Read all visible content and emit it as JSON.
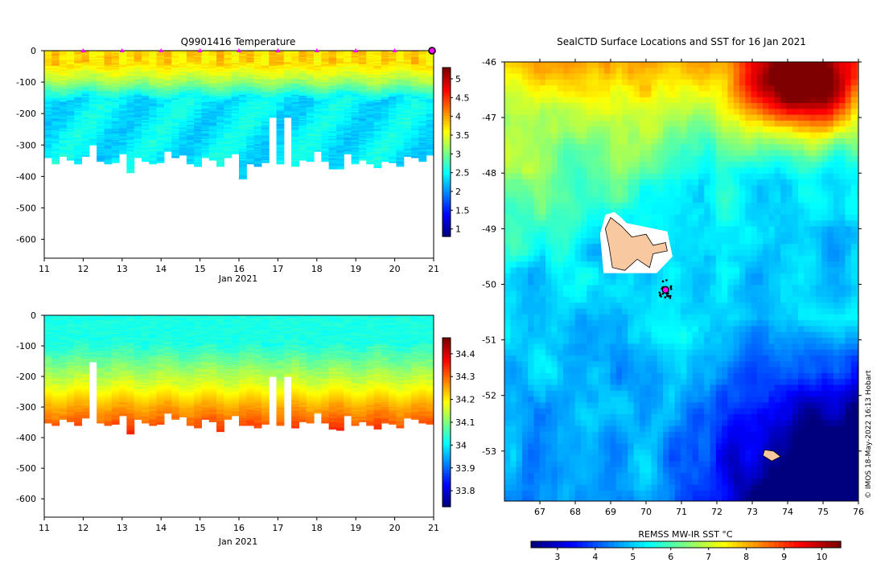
{
  "colors": {
    "jet": [
      "#00007f",
      "#0000ff",
      "#007fff",
      "#00ffff",
      "#7fff7f",
      "#ffff00",
      "#ff7f00",
      "#ff0000",
      "#7f0000"
    ],
    "land": "#f8c8a0",
    "marker": "#ff00ff"
  },
  "chart_data": [
    {
      "type": "heatmap",
      "title": "Q9901416  Temperature",
      "xlabel": "Jan 2021",
      "ylabel": "",
      "x_ticks": [
        "11",
        "12",
        "13",
        "14",
        "15",
        "16",
        "17",
        "18",
        "19",
        "20",
        "21"
      ],
      "xlim": [
        11,
        21
      ],
      "y_ticks": [
        "0",
        "-100",
        "-200",
        "-300",
        "-400",
        "-500",
        "-600"
      ],
      "ylim": [
        -660,
        0
      ],
      "surface_markers": [
        12,
        13,
        14,
        15,
        16,
        17,
        18,
        19,
        20
      ],
      "current_marker": 21,
      "colorbar": {
        "ticks": [
          "1",
          "1.5",
          "2",
          "2.5",
          "3",
          "3.5",
          "4",
          "4.5",
          "5"
        ],
        "range": [
          0.8,
          5.3
        ]
      },
      "profile_depths": [
        340,
        360,
        335,
        345,
        360,
        335,
        300,
        350,
        360,
        355,
        325,
        385,
        340,
        350,
        360,
        355,
        320,
        340,
        330,
        360,
        365,
        340,
        345,
        365,
        340,
        325,
        405,
        360,
        365,
        355,
        210,
        360,
        210,
        365,
        345,
        350,
        320,
        350,
        375,
        375,
        325,
        360,
        345,
        360,
        370,
        350,
        355,
        365,
        335,
        340,
        350,
        330
      ]
    },
    {
      "type": "heatmap",
      "title": "",
      "xlabel": "Jan 2021",
      "ylabel": "",
      "x_ticks": [
        "11",
        "12",
        "13",
        "14",
        "15",
        "16",
        "17",
        "18",
        "19",
        "20",
        "21"
      ],
      "xlim": [
        11,
        21
      ],
      "y_ticks": [
        "0",
        "-100",
        "-200",
        "-300",
        "-400",
        "-500",
        "-600"
      ],
      "ylim": [
        -660,
        0
      ],
      "colorbar": {
        "ticks": [
          "33.8",
          "33.9",
          "34",
          "34.1",
          "34.2",
          "34.3",
          "34.4"
        ],
        "range": [
          33.73,
          34.47
        ]
      },
      "profile_depths": [
        350,
        360,
        340,
        345,
        360,
        335,
        150,
        350,
        360,
        355,
        325,
        385,
        340,
        350,
        360,
        355,
        320,
        340,
        330,
        360,
        365,
        340,
        345,
        380,
        340,
        325,
        360,
        360,
        365,
        355,
        200,
        360,
        200,
        365,
        345,
        350,
        320,
        350,
        370,
        375,
        325,
        360,
        345,
        360,
        370,
        350,
        355,
        365,
        335,
        340,
        350,
        355
      ]
    },
    {
      "type": "heatmap",
      "title": "SealCTD Surface Locations and SST for 16 Jan 2021",
      "xlabel": "",
      "ylabel": "",
      "x_ticks": [
        "67",
        "68",
        "69",
        "70",
        "71",
        "72",
        "73",
        "74",
        "75",
        "76"
      ],
      "xlim": [
        66,
        76
      ],
      "y_ticks": [
        "-46",
        "-47",
        "-48",
        "-49",
        "-50",
        "-51",
        "-52",
        "-53"
      ],
      "ylim": [
        -53.9,
        -46
      ],
      "colorbar": {
        "label": "REMSS MW-IR SST °C",
        "ticks": [
          "3",
          "4",
          "5",
          "6",
          "7",
          "8",
          "9",
          "10"
        ],
        "range": [
          2.3,
          10.5
        ]
      },
      "seal_track_center": [
        70.55,
        -50.1
      ],
      "current_location": [
        70.55,
        -50.1
      ]
    }
  ],
  "credit": "© IMOS 18-May-2022 16:13 Hobart"
}
